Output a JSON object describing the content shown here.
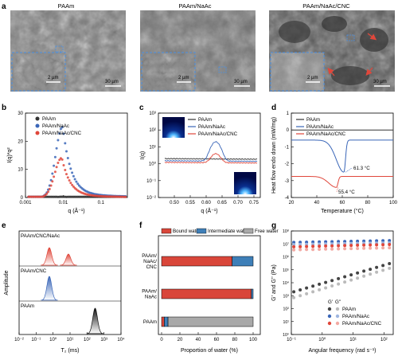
{
  "figure": {
    "panel_letters": [
      "a",
      "b",
      "c",
      "d",
      "e",
      "f",
      "g"
    ]
  },
  "panel_a": {
    "titles": [
      "PAAm",
      "PAAm/NaAc",
      "PAAm/NaAc/CNC"
    ],
    "scale_large": "30 µm",
    "scale_small": "2 µm"
  },
  "colors": {
    "paam": "#333333",
    "naac": "#3a66b8",
    "cnc": "#e0473b",
    "bound": "#d9463a",
    "intermediate": "#3e7fb8",
    "free": "#a9a9a9"
  },
  "chart_data": [
    {
      "panel": "b",
      "type": "scatter",
      "xlabel": "q (Å⁻¹)",
      "ylabel": "I(q)*q²",
      "x_scale": "log",
      "xlim": [
        0.001,
        0.5
      ],
      "ylim": [
        0,
        30
      ],
      "x_ticks": [
        "0.001",
        "0.01",
        "0.1"
      ],
      "y_ticks": [
        "0",
        "10",
        "20",
        "30"
      ],
      "legend": [
        "PAAm",
        "PAAm/NaAc",
        "PAAm/NaAc/CNC"
      ],
      "series": [
        {
          "name": "PAAm",
          "peak_q": 0.01,
          "peak_value": 0.3
        },
        {
          "name": "PAAm/NaAc",
          "peak_q": 0.0095,
          "peak_value": 25
        },
        {
          "name": "PAAm/NaAc/CNC",
          "peak_q": 0.009,
          "peak_value": 14
        }
      ]
    },
    {
      "panel": "c",
      "type": "line",
      "xlabel": "q (Å⁻¹)",
      "ylabel": "I(q)",
      "y_scale": "log",
      "xlim": [
        0.45,
        0.77
      ],
      "x_ticks": [
        "0.50",
        "0.55",
        "0.60",
        "0.65",
        "0.70",
        "0.75"
      ],
      "y_ticks": [
        "10⁻²",
        "10⁻¹",
        "10⁰",
        "10¹",
        "10²",
        "10³"
      ],
      "legend": [
        "PAAm",
        "PAAm/NaAc",
        "PAAm/NaAc/CNC"
      ],
      "series": [
        {
          "name": "PAAm",
          "baseline": 2
        },
        {
          "name": "PAAm/NaAc",
          "baseline": 1.5,
          "peak_q": 0.63,
          "peak_value": 20
        },
        {
          "name": "PAAm/NaAc/CNC",
          "baseline": 1.2,
          "peak_q": 0.63,
          "peak_value": 4
        }
      ]
    },
    {
      "panel": "d",
      "type": "line",
      "xlabel": "Temperature (°C)",
      "ylabel": "Heat flow endo down (mW/mg)",
      "xlim": [
        20,
        100
      ],
      "ylim": [
        -4,
        1
      ],
      "x_ticks": [
        "20",
        "40",
        "60",
        "80",
        "100"
      ],
      "y_ticks": [
        "-4",
        "-3",
        "-2",
        "-1",
        "0",
        "1"
      ],
      "legend": [
        "PAAm",
        "PAAm/NaAc",
        "PAAm/NaAc/CNC"
      ],
      "annotations": [
        "61.3 °C",
        "55.4 °C"
      ],
      "series": [
        {
          "name": "PAAm",
          "baseline": 0.0
        },
        {
          "name": "PAAm/NaAc",
          "baseline": -0.6,
          "peak_x": 61.3,
          "peak_value": -2.5
        },
        {
          "name": "PAAm/NaAc/CNC",
          "baseline": -2.75,
          "peak_x": 55.4,
          "peak_value": -3.4
        }
      ]
    },
    {
      "panel": "e",
      "type": "area",
      "xlabel": "T₂ (ms)",
      "ylabel": "Amplitude",
      "x_scale": "log",
      "xlim": [
        0.01,
        10000
      ],
      "x_ticks": [
        "10⁻²",
        "10⁻¹",
        "10⁰",
        "10¹",
        "10²",
        "10³",
        "10⁴"
      ],
      "rows": [
        {
          "label": "PAAm/CNC/NaAc",
          "peaks_T2": [
            0.6,
            8
          ]
        },
        {
          "label": "PAAm/CNC",
          "peaks_T2": [
            0.6
          ]
        },
        {
          "label": "PAAm",
          "peaks_T2": [
            300
          ]
        }
      ]
    },
    {
      "panel": "f",
      "type": "bar",
      "orientation": "horizontal-stacked",
      "xlabel": "Proportion of water (%)",
      "xlim": [
        0,
        100
      ],
      "x_ticks": [
        "0",
        "20",
        "40",
        "60",
        "80",
        "100"
      ],
      "legend": [
        "Bound water",
        "Intermediate water",
        "Free water"
      ],
      "categories": [
        "PAAm/ NaAc/ CNC",
        "PAAm/ NaAc",
        "PAAm"
      ],
      "series": [
        {
          "name": "Bound water",
          "values": [
            77,
            98,
            3
          ]
        },
        {
          "name": "Intermediate water",
          "values": [
            23,
            2,
            4
          ]
        },
        {
          "name": "Free water",
          "values": [
            0,
            0,
            93
          ]
        }
      ]
    },
    {
      "panel": "g",
      "type": "scatter",
      "xlabel": "Angular frequency (rad s⁻¹)",
      "ylabel": "G' and G'' (Pa)",
      "x_scale": "log",
      "y_scale": "log",
      "xlim": [
        0.1,
        200
      ],
      "ylim": [
        1,
        100000000
      ],
      "x_ticks": [
        "10⁻¹",
        "10⁰",
        "10¹",
        "10²"
      ],
      "y_ticks": [
        "10⁰",
        "10¹",
        "10²",
        "10³",
        "10⁴",
        "10⁵",
        "10⁶",
        "10⁷",
        "10⁸"
      ],
      "legend_header": [
        "G'",
        "G''"
      ],
      "legend": [
        "PAAm",
        "PAAm/NaAc",
        "PAAm/NaAc/CNC"
      ],
      "series": [
        {
          "name": "PAAm G'",
          "values_start": 2000,
          "values_end": 300000
        },
        {
          "name": "PAAm G''",
          "values_start": 700,
          "values_end": 130000
        },
        {
          "name": "PAAm/NaAc G'",
          "values_start": 13000000,
          "values_end": 18000000
        },
        {
          "name": "PAAm/NaAc G''",
          "values_start": 9000000,
          "values_end": 12000000
        },
        {
          "name": "PAAm/NaAc/CNC G'",
          "values_start": 6000000,
          "values_end": 9000000
        },
        {
          "name": "PAAm/NaAc/CNC G''",
          "values_start": 3500000,
          "values_end": 5000000
        }
      ]
    }
  ]
}
